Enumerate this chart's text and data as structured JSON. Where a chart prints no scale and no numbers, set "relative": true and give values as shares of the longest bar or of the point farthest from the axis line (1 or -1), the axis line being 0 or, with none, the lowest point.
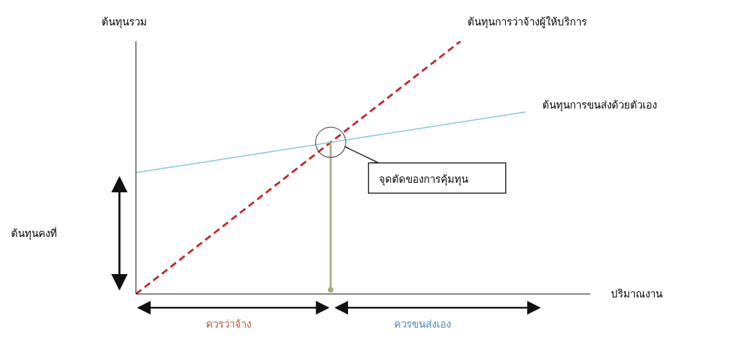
{
  "chart_data": {
    "type": "line",
    "relative": true,
    "ylabel": "ต้นทุนรวม",
    "xlabel": "ปริมาณงาน",
    "categories": [
      null,
      null,
      null,
      null,
      null,
      null,
      null,
      null
    ],
    "series": [
      {
        "name": "ต้นทุนการว่าจ้างผู้ให้บริการ",
        "color": "#c0282d",
        "line_style": "dashed",
        "values": [
          0,
          0.2,
          0.4,
          0.6,
          0.8,
          1.0,
          null,
          null
        ]
      },
      {
        "name": "ต้นทุนการขนส่งด้วยตัวเอง",
        "color": "#7ec8d0",
        "line_style": "solid",
        "values": [
          0.48,
          0.52,
          0.56,
          0.6,
          0.64,
          0.68,
          0.72,
          null
        ]
      }
    ],
    "annotations": [
      "ต้นทุนคงที่",
      "จุดตัดของการคุ้มทุน",
      "ควรว่าจ้าง",
      "ควรขนส่งเอง"
    ],
    "grid": false,
    "legend": false
  }
}
